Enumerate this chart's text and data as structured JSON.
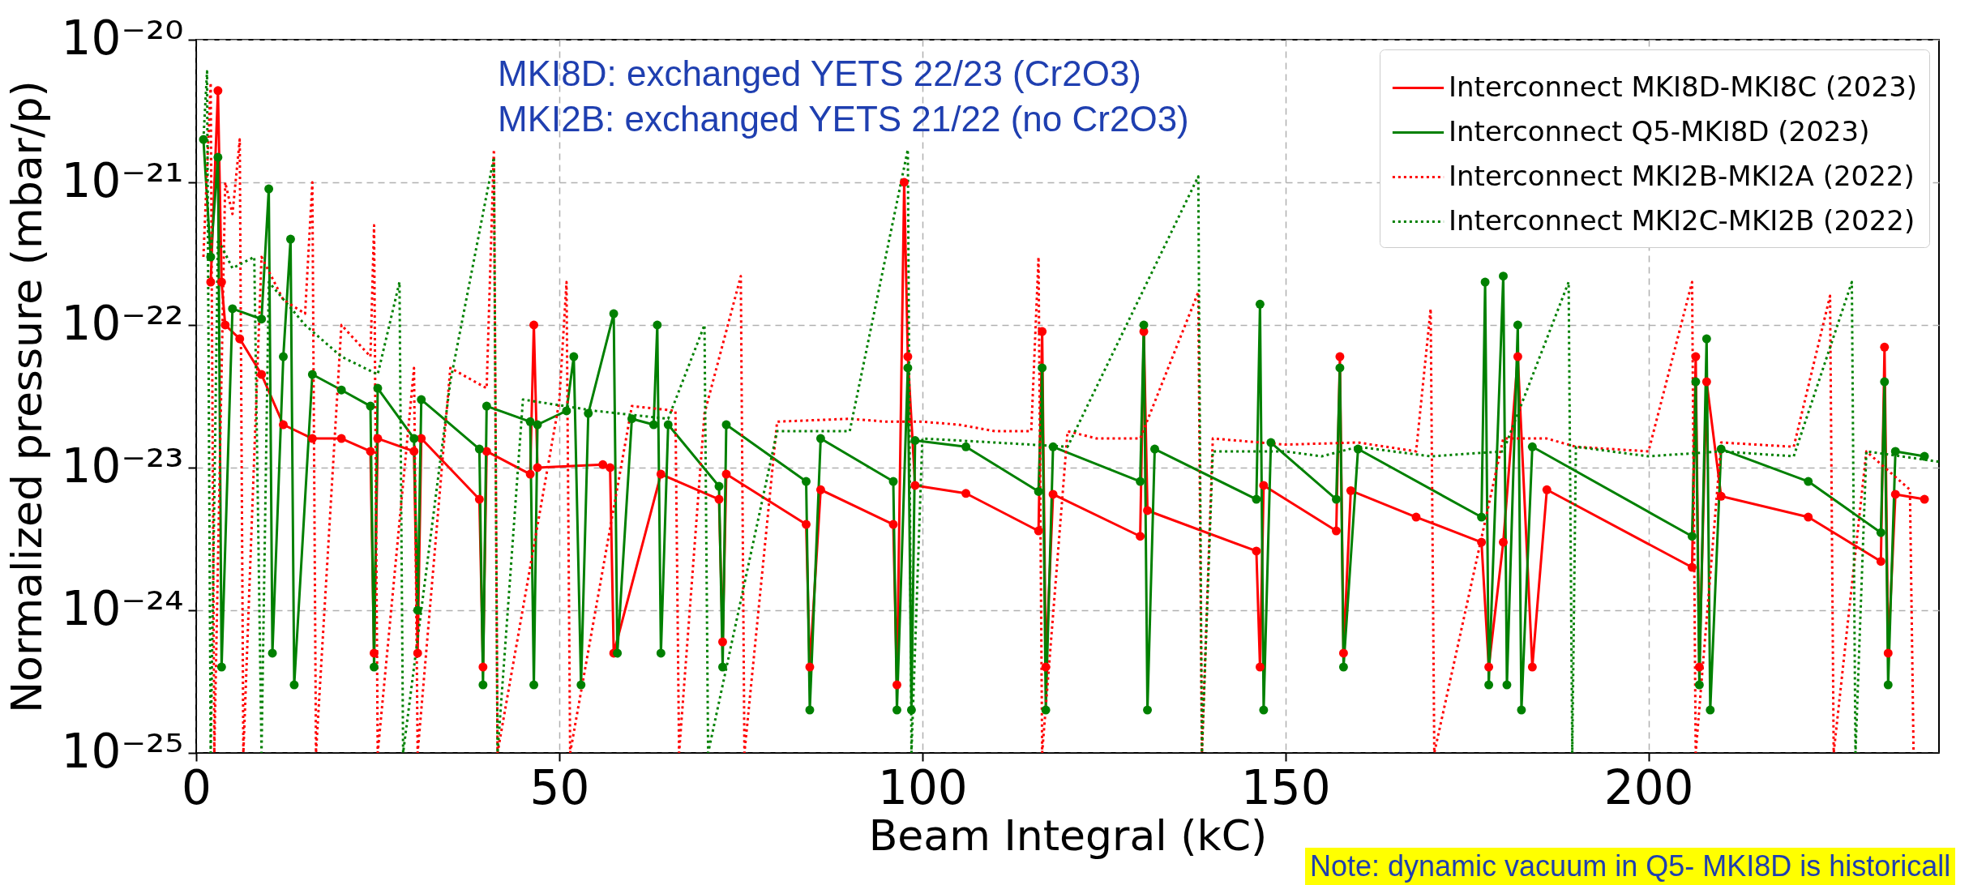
{
  "chart_data": {
    "type": "line",
    "xlabel": "Beam Integral (kC)",
    "ylabel": "Normalized pressure (mbar/p)",
    "annotations": [
      "MKI8D: exchanged YETS 22/23 (Cr2O3)",
      "MKI2B: exchanged YETS 21/22 (no Cr2O3)",
      "Note: dynamic vacuum in Q5- MKI8D is historicall"
    ],
    "xlim": [
      0,
      240
    ],
    "xticks": [
      0,
      50,
      100,
      150,
      200
    ],
    "ylim": [
      1e-25,
      1e-20
    ],
    "yticks": [
      {
        "value": 1e-25,
        "label": "10⁻²⁵"
      },
      {
        "value": 1e-24,
        "label": "10⁻²⁴"
      },
      {
        "value": 1e-23,
        "label": "10⁻²³"
      },
      {
        "value": 1e-22,
        "label": "10⁻²²"
      },
      {
        "value": 1e-21,
        "label": "10⁻²¹"
      },
      {
        "value": 1e-20,
        "label": "10⁻²⁰"
      }
    ],
    "log": "y",
    "grid": true,
    "legend": "top right",
    "series": [
      {
        "name": "Interconnect MKI8D-MKI8C (2023)",
        "color": "#ff0000",
        "marker": "circle",
        "line_style": "solid",
        "x": [
          2,
          3,
          3.5,
          4,
          6,
          9,
          12,
          16,
          20,
          24,
          24.5,
          25,
          30,
          30.5,
          31,
          39,
          39.5,
          40,
          46,
          46.5,
          47,
          56,
          57,
          57.5,
          64,
          72,
          72.5,
          73,
          84,
          84.5,
          86,
          96,
          96.5,
          97.5,
          98,
          99,
          106,
          116,
          116.5,
          117,
          118,
          130,
          130.5,
          131,
          146,
          146.5,
          147,
          157,
          157.5,
          158,
          159,
          168,
          177,
          178,
          180,
          182,
          184,
          186,
          206,
          206.5,
          207,
          208,
          210,
          222,
          232,
          232.5,
          233,
          234,
          238
        ],
        "values": [
          2e-22,
          4.4e-21,
          2e-22,
          1e-22,
          8e-23,
          4.5e-23,
          2e-23,
          1.6e-23,
          1.6e-23,
          1.3e-23,
          5e-25,
          1.6e-23,
          1.3e-23,
          5e-25,
          1.6e-23,
          6e-24,
          4e-25,
          1.3e-23,
          9e-24,
          1e-22,
          1e-23,
          1.05e-23,
          1e-23,
          5e-25,
          9e-24,
          6e-24,
          6e-25,
          9e-24,
          4e-24,
          4e-25,
          7e-24,
          4e-24,
          3e-25,
          1e-21,
          6e-23,
          7.5e-24,
          6.6e-24,
          3.6e-24,
          9e-23,
          4e-25,
          6.5e-24,
          3.3e-24,
          9e-23,
          5e-24,
          2.6e-24,
          4e-25,
          7.5e-24,
          3.6e-24,
          6e-23,
          5e-25,
          6.9e-24,
          4.5e-24,
          3e-24,
          4e-25,
          3e-24,
          6e-23,
          4e-25,
          7e-24,
          2e-24,
          6e-23,
          4e-25,
          4e-23,
          6.3e-24,
          4.5e-24,
          2.2e-24,
          7e-23,
          5e-25,
          6.5e-24,
          6e-24
        ]
      },
      {
        "name": "Interconnect Q5-MKI8D (2023)",
        "color": "#008000",
        "marker": "circle",
        "line_style": "solid",
        "x": [
          1,
          2,
          3,
          3.5,
          5,
          9,
          10,
          10.5,
          12,
          13,
          13.5,
          16,
          20,
          24,
          24.5,
          25,
          30,
          30.5,
          31,
          39,
          39.5,
          40,
          46,
          46.5,
          47,
          51,
          52,
          53,
          54,
          57.5,
          58,
          60,
          63,
          63.5,
          64,
          65,
          72,
          72.5,
          73,
          84,
          84.5,
          86,
          96,
          96.5,
          98,
          98.5,
          99,
          106,
          116,
          116.5,
          117,
          118,
          130,
          130.5,
          131,
          132,
          146,
          146.5,
          147,
          148,
          157,
          157.5,
          158,
          160,
          177,
          177.5,
          178,
          180,
          180.5,
          182,
          182.5,
          184,
          206,
          206.5,
          207,
          208,
          208.5,
          210,
          222,
          232,
          232.5,
          233,
          234,
          238
        ],
        "values": [
          2e-21,
          3e-22,
          1.5e-21,
          4e-25,
          1.3e-22,
          1.1e-22,
          9e-22,
          5e-25,
          6e-23,
          4e-22,
          3e-25,
          4.5e-23,
          3.5e-23,
          2.7e-23,
          4e-25,
          3.6e-23,
          1.6e-23,
          1e-24,
          3e-23,
          1.35e-23,
          3e-25,
          2.7e-23,
          2.1e-23,
          3e-25,
          2e-23,
          2.5e-23,
          6e-23,
          3e-25,
          2.4e-23,
          1.2e-22,
          5e-25,
          2.2e-23,
          2e-23,
          1e-22,
          5e-25,
          2e-23,
          7.4e-24,
          4e-25,
          2e-23,
          8e-24,
          2e-25,
          1.6e-23,
          8e-24,
          2e-25,
          5e-23,
          2e-25,
          1.55e-23,
          1.4e-23,
          6.8e-24,
          5e-23,
          2e-25,
          1.4e-23,
          8e-24,
          1e-22,
          2e-25,
          1.35e-23,
          6e-24,
          1.4e-22,
          2e-25,
          1.5e-23,
          6e-24,
          5e-23,
          4e-25,
          1.35e-23,
          4.5e-24,
          2e-22,
          3e-25,
          2.2e-22,
          3e-25,
          1e-22,
          2e-25,
          1.4e-23,
          3.3e-24,
          4e-23,
          3e-25,
          8e-23,
          2e-25,
          1.35e-23,
          8e-24,
          3.5e-24,
          4e-23,
          3e-25,
          1.3e-23,
          1.2e-23
        ]
      },
      {
        "name": "Interconnect MKI2B-MKI2A (2022)",
        "color": "#ff0000",
        "marker": "none",
        "line_style": "dotted",
        "x": [
          1,
          2,
          2.5,
          4,
          5,
          6,
          6.5,
          9,
          12,
          15,
          16,
          16.5,
          20,
          24,
          24.5,
          25,
          30,
          30.5,
          35,
          40,
          41,
          41.5,
          50,
          51,
          51.5,
          60,
          66,
          66.5,
          70,
          75,
          75.5,
          80,
          90,
          95,
          100,
          105,
          110,
          115,
          116,
          116.5,
          120,
          124,
          130,
          138,
          138.5,
          140,
          150,
          160,
          168,
          170,
          170.5,
          180,
          186,
          190,
          200,
          206,
          206.5,
          210,
          220,
          225,
          225.5,
          230,
          236,
          236.5
        ],
        "values": [
          3e-22,
          5e-21,
          1e-25,
          1e-21,
          6e-22,
          2e-21,
          1e-25,
          3e-22,
          1.5e-22,
          1.2e-22,
          1e-21,
          1e-25,
          1e-22,
          6e-23,
          5e-22,
          1e-25,
          5e-23,
          1e-25,
          5e-23,
          3.6e-23,
          1.7e-21,
          1e-25,
          2.9e-23,
          2e-22,
          1e-25,
          2.7e-23,
          2.5e-23,
          1e-25,
          2.4e-23,
          2.2e-22,
          1e-25,
          2.1e-23,
          2.2e-23,
          2.1e-23,
          2.1e-23,
          2e-23,
          1.8e-23,
          1.8e-23,
          3e-22,
          1e-25,
          1.8e-23,
          1.6e-23,
          1.6e-23,
          1.7e-22,
          1e-25,
          1.6e-23,
          1.45e-23,
          1.5e-23,
          1.3e-23,
          1.3e-22,
          1e-25,
          1.6e-23,
          1.6e-23,
          1.4e-23,
          1.3e-23,
          2e-22,
          1e-25,
          1.5e-23,
          1.4e-23,
          1.6e-22,
          1e-25,
          1.3e-23,
          7e-24,
          1e-25
        ]
      },
      {
        "name": "Interconnect MKI2C-MKI2B (2022)",
        "color": "#008000",
        "marker": "none",
        "line_style": "dotted",
        "x": [
          1,
          1.5,
          2,
          3,
          5,
          8,
          9,
          10,
          15,
          20,
          25,
          28,
          28.5,
          35,
          41,
          41.5,
          45,
          55,
          65,
          70,
          70.5,
          80,
          90,
          98,
          98.5,
          100,
          110,
          120,
          138,
          138.5,
          140,
          150,
          155,
          160,
          170,
          180,
          189,
          189.5,
          190,
          200,
          210,
          220,
          228,
          228.5,
          230,
          240
        ],
        "values": [
          2e-21,
          6e-21,
          1e-25,
          4e-22,
          2.5e-22,
          3e-22,
          1e-25,
          2e-22,
          1e-22,
          6e-23,
          4.5e-23,
          2e-22,
          1e-25,
          4e-23,
          1.5e-21,
          1e-25,
          3e-23,
          2.5e-23,
          2.2e-23,
          1e-22,
          1e-25,
          1.8e-23,
          1.8e-23,
          1.7e-21,
          1e-25,
          1.6e-23,
          1.5e-23,
          1.4e-23,
          1.1e-21,
          1e-25,
          1.3e-23,
          1.3e-23,
          1.2e-23,
          1.4e-23,
          1.2e-23,
          1.3e-23,
          2e-22,
          1e-25,
          1.4e-23,
          1.2e-23,
          1.3e-23,
          1.2e-23,
          2e-22,
          1e-25,
          1.3e-23,
          1.1e-23
        ]
      }
    ]
  }
}
